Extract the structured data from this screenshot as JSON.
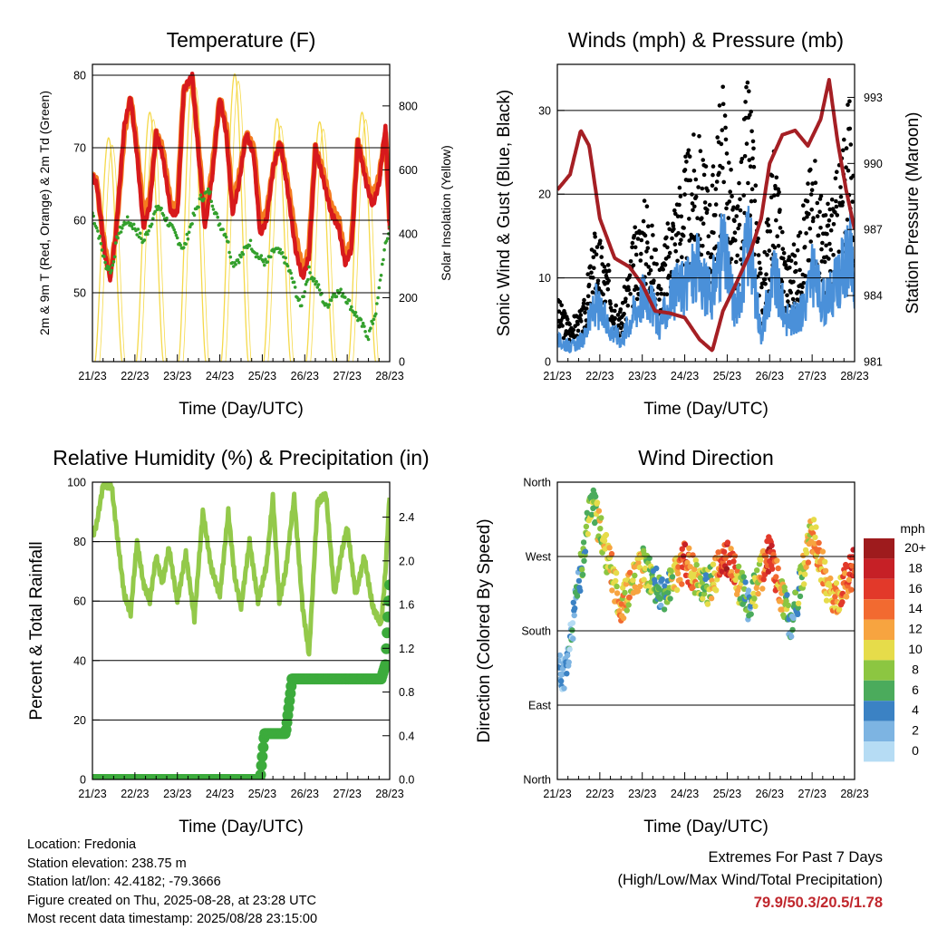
{
  "info": {
    "location": "Location: Fredonia",
    "elevation": "Station elevation: 238.75 m",
    "latlon": "Station lat/lon: 42.4182; -79.3666",
    "created": "Figure created on Thu, 2025-08-28, at 23:28 UTC",
    "recent": "Most recent data timestamp: 2025/08/28 23:15:00"
  },
  "extremes": {
    "title": "Extremes For Past 7 Days",
    "subtitle": "(High/Low/Max Wind/Total Precipitation)",
    "values": "79.9/50.3/20.5/1.78",
    "color": "#c0272d"
  },
  "chart_data": [
    {
      "type": "line",
      "title": "Temperature (F)",
      "xlabel": "Time (Day/UTC)",
      "ylabel": "2m & 9m T (Red, Orange) & 2m Td (Green)",
      "ylabel_right": "Solar Insolation (Yellow)",
      "x_ticks": [
        "21/23",
        "22/23",
        "23/23",
        "24/23",
        "25/23",
        "26/23",
        "27/23",
        "28/23"
      ],
      "xlim": [
        0,
        7
      ],
      "ylim": [
        40.5,
        81.5
      ],
      "y_ticks": [
        50,
        60,
        70,
        80
      ],
      "y2lim": [
        0,
        930
      ],
      "y2_ticks": [
        0,
        200,
        400,
        600,
        800
      ],
      "grid": "horizontal",
      "series": [
        {
          "name": "9m T",
          "color": "#f47c20",
          "axis": "left",
          "x": [
            0,
            0.1,
            0.2,
            0.3,
            0.42,
            0.55,
            0.75,
            0.9,
            1.05,
            1.2,
            1.35,
            1.5,
            1.65,
            1.85,
            2.0,
            2.15,
            2.35,
            2.5,
            2.65,
            2.82,
            3.0,
            3.15,
            3.3,
            3.45,
            3.62,
            3.8,
            3.95,
            4.1,
            4.25,
            4.42,
            4.6,
            4.78,
            4.95,
            5.1,
            5.25,
            5.42,
            5.62,
            5.8,
            5.95,
            6.1,
            6.25,
            6.45,
            6.6,
            6.75,
            6.9,
            7.0
          ],
          "y": [
            66,
            65.5,
            60,
            56,
            52.5,
            58,
            72,
            77,
            70,
            61,
            63,
            72,
            70,
            62,
            62,
            78,
            79.5,
            70,
            60,
            67,
            77,
            73,
            62,
            66,
            72,
            70,
            60,
            61,
            67,
            71,
            65,
            58,
            53,
            56,
            70,
            67,
            62,
            60,
            55,
            57,
            71,
            66,
            63,
            66,
            72,
            60
          ]
        },
        {
          "name": "2m T",
          "color": "#d7191c",
          "axis": "left",
          "x": [
            0,
            0.1,
            0.2,
            0.3,
            0.42,
            0.55,
            0.75,
            0.9,
            1.05,
            1.2,
            1.35,
            1.5,
            1.65,
            1.85,
            2.0,
            2.15,
            2.35,
            2.5,
            2.65,
            2.82,
            3.0,
            3.15,
            3.3,
            3.45,
            3.62,
            3.8,
            3.95,
            4.1,
            4.25,
            4.42,
            4.6,
            4.78,
            4.95,
            5.1,
            5.25,
            5.42,
            5.62,
            5.8,
            5.95,
            6.1,
            6.25,
            6.45,
            6.6,
            6.75,
            6.9,
            7.0
          ],
          "y": [
            66,
            65,
            60,
            55,
            52,
            58,
            73,
            77,
            69,
            59,
            62,
            72,
            69,
            61,
            61,
            78,
            79.9,
            69,
            59,
            66,
            77,
            72,
            61,
            65,
            72,
            69,
            58,
            60,
            67,
            71,
            64,
            56,
            52,
            55,
            70,
            66,
            61,
            59,
            54,
            56,
            71,
            65,
            62,
            65,
            73,
            59
          ]
        },
        {
          "name": "2m Td",
          "color": "#33a02c",
          "axis": "left",
          "x": [
            0,
            0.15,
            0.3,
            0.45,
            0.6,
            0.8,
            1.0,
            1.2,
            1.4,
            1.55,
            1.75,
            1.95,
            2.15,
            2.35,
            2.55,
            2.75,
            2.95,
            3.15,
            3.3,
            3.5,
            3.7,
            3.9,
            4.1,
            4.3,
            4.5,
            4.7,
            4.9,
            5.1,
            5.3,
            5.5,
            5.7,
            5.9,
            6.1,
            6.3,
            6.5,
            6.7,
            6.85,
            7.0
          ],
          "y": [
            61,
            58,
            54,
            53,
            58,
            60,
            59,
            57,
            60,
            62,
            60,
            58,
            56,
            60,
            63,
            64,
            60,
            58,
            54,
            55,
            57,
            55,
            54,
            56,
            55,
            52,
            48,
            53,
            51,
            48,
            50,
            50,
            48,
            46,
            44,
            48,
            55,
            59
          ]
        },
        {
          "name": "Solar Insolation",
          "color": "#f5d94a",
          "axis": "right",
          "days": [
            0.38,
            1.35,
            2.35,
            3.35,
            4.35,
            5.35,
            6.35
          ],
          "peaks": [
            700,
            780,
            880,
            900,
            760,
            750,
            780
          ]
        }
      ]
    },
    {
      "type": "scatter",
      "title": "Winds (mph) & Pressure (mb)",
      "xlabel": "Time (Day/UTC)",
      "ylabel": "Sonic Wind & Gust (Blue, Black)",
      "ylabel_right": "Station Pressure (Maroon)",
      "x_ticks": [
        "21/23",
        "22/23",
        "23/23",
        "24/23",
        "25/23",
        "26/23",
        "27/23",
        "28/23"
      ],
      "xlim": [
        0,
        7
      ],
      "ylim": [
        0,
        35.5
      ],
      "y_ticks": [
        0,
        10,
        20,
        30
      ],
      "y2lim": [
        981,
        994.5
      ],
      "y2_ticks": [
        981,
        984,
        987,
        990,
        993
      ],
      "grid": "horizontal",
      "series": [
        {
          "name": "Gust",
          "color": "#000000",
          "x": [
            0,
            0.3,
            0.6,
            0.9,
            1.2,
            1.5,
            1.8,
            2.1,
            2.4,
            2.7,
            3.0,
            3.3,
            3.6,
            3.9,
            4.2,
            4.5,
            4.8,
            5.1,
            5.4,
            5.7,
            6.0,
            6.3,
            6.6,
            6.9,
            7.0
          ],
          "y": [
            6,
            4,
            5,
            13,
            9,
            5,
            12,
            16,
            9,
            15,
            19,
            22,
            16,
            27,
            13,
            28,
            8,
            20,
            10,
            12,
            20,
            14,
            18,
            25,
            16
          ]
        },
        {
          "name": "Wind",
          "color": "#4a90d9",
          "x": [
            0,
            0.3,
            0.6,
            0.9,
            1.2,
            1.5,
            1.8,
            2.1,
            2.4,
            2.7,
            3.0,
            3.3,
            3.6,
            3.9,
            4.2,
            4.5,
            4.8,
            5.1,
            5.4,
            5.7,
            6.0,
            6.3,
            6.6,
            6.9,
            7.0
          ],
          "y": [
            3,
            2,
            3,
            8,
            5,
            3,
            7,
            10,
            5,
            9,
            11,
            13,
            9,
            16,
            7,
            17,
            4,
            12,
            6,
            6,
            12,
            8,
            11,
            15,
            9
          ]
        },
        {
          "name": "Pressure",
          "color": "#a51f24",
          "axis": "right",
          "x": [
            0,
            0.3,
            0.55,
            0.75,
            1.0,
            1.35,
            1.7,
            2.0,
            2.3,
            2.65,
            3.0,
            3.35,
            3.65,
            3.9,
            4.2,
            4.55,
            4.8,
            5.0,
            5.3,
            5.6,
            5.9,
            6.2,
            6.4,
            6.6,
            6.8,
            7.0
          ],
          "y": [
            988.8,
            989.5,
            991.5,
            990.8,
            987.5,
            985.7,
            985.3,
            984.5,
            983.3,
            983.2,
            983.0,
            982.0,
            981.5,
            983.3,
            984.5,
            986.0,
            987.5,
            990.0,
            991.3,
            991.5,
            990.8,
            992.0,
            993.8,
            991.0,
            988.8,
            987.0
          ]
        }
      ]
    },
    {
      "type": "line",
      "title": "Relative Humidity (%) & Precipitation (in)",
      "xlabel": "Time (Day/UTC)",
      "ylabel": "Percent & Total Rainfall",
      "x_ticks": [
        "21/23",
        "22/23",
        "23/23",
        "24/23",
        "25/23",
        "26/23",
        "27/23",
        "28/23"
      ],
      "xlim": [
        0,
        7
      ],
      "ylim": [
        0,
        100
      ],
      "y_ticks": [
        0,
        20,
        40,
        60,
        80,
        100
      ],
      "y2lim": [
        0,
        2.72
      ],
      "y2_ticks": [
        "0.0",
        "0.4",
        "0.8",
        "1.2",
        "1.6",
        "2.0",
        "2.4"
      ],
      "grid": "horizontal",
      "series": [
        {
          "name": "Relative Humidity",
          "color": "#93c94a",
          "x": [
            0,
            0.1,
            0.25,
            0.45,
            0.6,
            0.75,
            0.9,
            1.05,
            1.2,
            1.35,
            1.5,
            1.65,
            1.8,
            2.0,
            2.2,
            2.4,
            2.6,
            2.8,
            3.0,
            3.2,
            3.35,
            3.5,
            3.7,
            3.9,
            4.1,
            4.25,
            4.4,
            4.55,
            4.75,
            4.95,
            5.1,
            5.3,
            5.5,
            5.7,
            5.85,
            6.0,
            6.2,
            6.4,
            6.6,
            6.8,
            6.9,
            7.0
          ],
          "y": [
            82,
            86,
            99,
            99,
            80,
            62,
            56,
            80,
            66,
            60,
            75,
            66,
            78,
            60,
            76,
            54,
            90,
            71,
            62,
            90,
            68,
            58,
            80,
            60,
            72,
            95,
            60,
            70,
            95,
            58,
            42,
            93,
            96,
            62,
            75,
            85,
            62,
            75,
            58,
            52,
            70,
            96
          ]
        },
        {
          "name": "Total Rainfall",
          "color": "#3cab3c",
          "axis": "right",
          "x": [
            0,
            3.95,
            4.05,
            4.55,
            4.7,
            6.8,
            6.9,
            7.0
          ],
          "y": [
            0,
            0,
            0.42,
            0.42,
            0.92,
            0.92,
            1.05,
            1.78
          ]
        }
      ]
    },
    {
      "type": "scatter",
      "title": "Wind Direction",
      "xlabel": "Time (Day/UTC)",
      "ylabel": "Direction (Colored By Speed)",
      "x_ticks": [
        "21/23",
        "22/23",
        "23/23",
        "24/23",
        "25/23",
        "26/23",
        "27/23",
        "28/23"
      ],
      "xlim": [
        0,
        7
      ],
      "ylim": [
        0,
        360
      ],
      "y_ticks": [
        "North",
        "East",
        "South",
        "West",
        "North"
      ],
      "grid": "horizontal",
      "legend_title": "mph",
      "legend": [
        "20+",
        "18",
        "16",
        "14",
        "12",
        "10",
        "8",
        "6",
        "4",
        "2",
        "0"
      ],
      "legend_colors": [
        "#9e1b1d",
        "#c62026",
        "#e2392a",
        "#f26a30",
        "#f7a440",
        "#e6dc4a",
        "#8cc641",
        "#4bab5c",
        "#3b82c4",
        "#7db4e2",
        "#b6dcf4"
      ],
      "points_summary": [
        {
          "day": 0.2,
          "direction": 130,
          "speed": 2
        },
        {
          "day": 0.8,
          "direction": 340,
          "speed": 8
        },
        {
          "day": 1.5,
          "direction": 210,
          "speed": 12
        },
        {
          "day": 2.0,
          "direction": 260,
          "speed": 10
        },
        {
          "day": 2.5,
          "direction": 220,
          "speed": 4
        },
        {
          "day": 3.0,
          "direction": 265,
          "speed": 16
        },
        {
          "day": 3.5,
          "direction": 230,
          "speed": 6
        },
        {
          "day": 4.0,
          "direction": 270,
          "speed": 18
        },
        {
          "day": 4.5,
          "direction": 210,
          "speed": 4
        },
        {
          "day": 5.0,
          "direction": 275,
          "speed": 18
        },
        {
          "day": 5.5,
          "direction": 185,
          "speed": 4
        },
        {
          "day": 6.0,
          "direction": 300,
          "speed": 12
        },
        {
          "day": 6.5,
          "direction": 210,
          "speed": 12
        },
        {
          "day": 7.0,
          "direction": 260,
          "speed": 16
        }
      ]
    }
  ]
}
